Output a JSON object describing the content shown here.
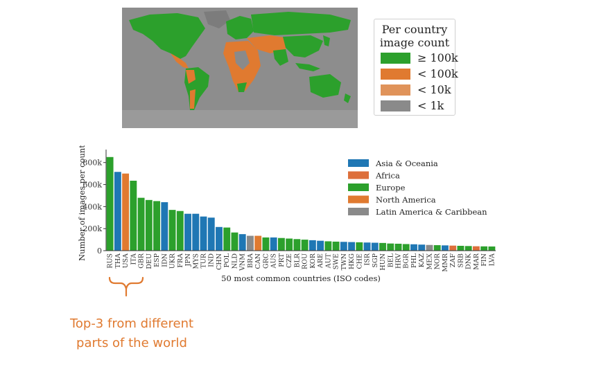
{
  "map_legend": {
    "title_line1": "Per country",
    "title_line2": "image count",
    "items": [
      {
        "label": "≥ 100k",
        "color": "#2ca02c"
      },
      {
        "label": "< 100k",
        "color": "#e07a30"
      },
      {
        "label": "< 10k",
        "color": "#e0935a"
      },
      {
        "label": "< 1k",
        "color": "#8a8a8a"
      }
    ]
  },
  "chart_data": {
    "type": "bar",
    "xlabel": "50 most common countries (ISO codes)",
    "ylabel": "Number of images per country",
    "ylim": [
      0,
      880000
    ],
    "yticks": [
      {
        "v": 0,
        "label": "0"
      },
      {
        "v": 200000,
        "label": "200k"
      },
      {
        "v": 400000,
        "label": "400k"
      },
      {
        "v": 600000,
        "label": "600k"
      },
      {
        "v": 800000,
        "label": "800k"
      }
    ],
    "categories": [
      "RUS",
      "THA",
      "USA",
      "ITA",
      "GBR",
      "DEU",
      "ESP",
      "IDN",
      "UKR",
      "FRA",
      "JPN",
      "MYS",
      "TUR",
      "IND",
      "CHN",
      "POL",
      "NLD",
      "VNM",
      "BRA",
      "CAN",
      "GRC",
      "AUS",
      "PRT",
      "CZE",
      "BLR",
      "ROU",
      "KOR",
      "ARE",
      "AUT",
      "SWE",
      "TWN",
      "HKG",
      "CHE",
      "ISR",
      "SGP",
      "HUN",
      "BEL",
      "HRV",
      "BGR",
      "PHL",
      "KAZ",
      "MEX",
      "NOR",
      "MMR",
      "ZAF",
      "SRB",
      "DNK",
      "MAR",
      "FIN",
      "LVA"
    ],
    "values": [
      850000,
      715000,
      700000,
      635000,
      480000,
      460000,
      450000,
      440000,
      370000,
      360000,
      335000,
      335000,
      310000,
      300000,
      215000,
      210000,
      165000,
      150000,
      135000,
      135000,
      120000,
      120000,
      115000,
      110000,
      105000,
      100000,
      95000,
      90000,
      85000,
      82000,
      80000,
      78000,
      76000,
      74000,
      72000,
      70000,
      65000,
      63000,
      60000,
      58000,
      55000,
      52000,
      50000,
      48000,
      46000,
      44000,
      42000,
      40000,
      39000,
      38000
    ],
    "regions": [
      "europe",
      "asia",
      "namerica",
      "europe",
      "europe",
      "europe",
      "europe",
      "asia",
      "europe",
      "europe",
      "asia",
      "asia",
      "asia",
      "asia",
      "asia",
      "europe",
      "europe",
      "asia",
      "latam",
      "namerica",
      "europe",
      "asia",
      "europe",
      "europe",
      "europe",
      "europe",
      "asia",
      "asia",
      "europe",
      "europe",
      "asia",
      "asia",
      "europe",
      "asia",
      "asia",
      "europe",
      "europe",
      "europe",
      "europe",
      "asia",
      "asia",
      "latam",
      "europe",
      "asia",
      "africa",
      "europe",
      "europe",
      "africa",
      "europe",
      "europe"
    ],
    "series": [
      {
        "key": "asia",
        "name": "Asia & Oceania",
        "color": "#1f77b4"
      },
      {
        "key": "africa",
        "name": "Africa",
        "color": "#dd6f3b"
      },
      {
        "key": "europe",
        "name": "Europe",
        "color": "#2ca02c"
      },
      {
        "key": "namerica",
        "name": "North America",
        "color": "#e07a30"
      },
      {
        "key": "latam",
        "name": "Latin America & Caribbean",
        "color": "#8a8a8a"
      }
    ],
    "legend_position": "top-right",
    "grid": false
  },
  "annotation": {
    "line1": "Top-3 from different",
    "line2": "parts of the world",
    "color": "#e07a30"
  }
}
